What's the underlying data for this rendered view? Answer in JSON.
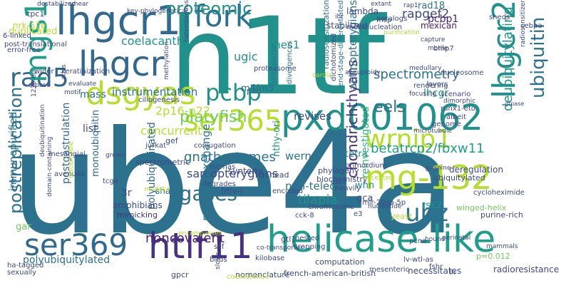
{
  "palette": {
    "dark_purple": "#482173",
    "purple": "#46327e",
    "indigo": "#3e4989",
    "blue": "#31688e",
    "steel": "#2c728e",
    "teal": "#21918c",
    "teal_green": "#1f9e89",
    "green": "#35b779",
    "light_green": "#6ece58",
    "lime": "#b5de2b",
    "yellow": "#c8e020"
  },
  "words": [
    {
      "text": "h1tf"
    },
    {
      "text": "ube4a"
    },
    {
      "text": "pxd001062"
    },
    {
      "text": "helicase-like"
    },
    {
      "text": "ser365"
    },
    {
      "text": "lhgcr1"
    },
    {
      "text": "lhgcr"
    },
    {
      "text": "dsgyas"
    },
    {
      "text": "ser369"
    },
    {
      "text": "htlf11"
    },
    {
      "text": "mg-132"
    },
    {
      "text": "wrnip1"
    },
    {
      "text": "fork"
    },
    {
      "text": "rad5"
    },
    {
      "text": "mgs1"
    },
    {
      "text": "pcbp"
    },
    {
      "text": "lhgcr2"
    },
    {
      "text": "ubz"
    },
    {
      "text": "ubiquitin"
    },
    {
      "text": "proteomic"
    },
    {
      "text": "postreplication"
    },
    {
      "text": "chondrichthyans"
    },
    {
      "text": "deubiquitylating"
    },
    {
      "text": "platyfish"
    },
    {
      "text": "ligases"
    },
    {
      "text": "eels"
    },
    {
      "text": "spectrometry"
    },
    {
      "text": "betatrcp2/fbxw11"
    },
    {
      "text": "gnathostomes"
    },
    {
      "text": "sarcopterygians"
    },
    {
      "text": "proteomexchange"
    },
    {
      "text": "noncovalent"
    },
    {
      "text": "polyubiquitylated"
    },
    {
      "text": "instrumentation"
    },
    {
      "text": "reinvestigated"
    },
    {
      "text": "coelacanth"
    },
    {
      "text": "tilapia"
    },
    {
      "text": "non-teleost"
    },
    {
      "text": "actinopterygians"
    },
    {
      "text": "rapgef2"
    },
    {
      "text": "rad18"
    },
    {
      "text": "ches1"
    },
    {
      "text": "ugic"
    },
    {
      "text": "m4/m5"
    },
    {
      "text": "mass"
    },
    {
      "text": "list"
    },
    {
      "text": "concurrent"
    },
    {
      "text": "2p16-p22"
    },
    {
      "text": "revises"
    },
    {
      "text": "werner"
    },
    {
      "text": "3r"
    },
    {
      "text": "polyubiquitinated"
    },
    {
      "text": "postgastrulation"
    },
    {
      "text": "monoubiquitin"
    },
    {
      "text": "immunopurified"
    },
    {
      "text": "duplicated"
    },
    {
      "text": "nrk-52e"
    },
    {
      "text": "tpc1"
    },
    {
      "text": "6-linked"
    },
    {
      "text": "post-translational"
    },
    {
      "text": "error-free"
    },
    {
      "text": "gar"
    },
    {
      "text": "htlv-i"
    },
    {
      "text": "synteny"
    },
    {
      "text": "amphibians"
    },
    {
      "text": "mimicking"
    },
    {
      "text": "shaft"
    },
    {
      "text": "gca"
    },
    {
      "text": "whn"
    },
    {
      "text": "tetra"
    },
    {
      "text": "nthy-ori"
    },
    {
      "text": "rsk2"
    },
    {
      "text": "lhcgr"
    },
    {
      "text": "pcbp1"
    },
    {
      "text": "mexican"
    },
    {
      "text": "lambda"
    },
    {
      "text": "stabilized"
    },
    {
      "text": "proteasome"
    },
    {
      "text": "pac"
    },
    {
      "text": "subcapsular"
    },
    {
      "text": "divergences"
    },
    {
      "text": "radiosensitization"
    },
    {
      "text": "dichotomized"
    },
    {
      "text": "end-stage-differentiated"
    },
    {
      "text": "biochemistry"
    },
    {
      "text": "phylogeny"
    },
    {
      "text": "primordium"
    },
    {
      "text": "deregulation"
    },
    {
      "text": "ubiquitylated"
    },
    {
      "text": "cycloheximide"
    },
    {
      "text": "winged-helix"
    },
    {
      "text": "purine-rich"
    },
    {
      "text": "p=0.012"
    },
    {
      "text": "radioresistance"
    },
    {
      "text": "french-american-british"
    },
    {
      "text": "nomenclature"
    },
    {
      "text": "necessitates"
    },
    {
      "text": "mesenteric"
    },
    {
      "text": "computation"
    },
    {
      "text": "lv-wtl-as"
    },
    {
      "text": "yeast"
    },
    {
      "text": "pcna"
    },
    {
      "text": "bound"
    },
    {
      "text": "perinatal"
    },
    {
      "text": "mir-203a-5p"
    },
    {
      "text": "e3"
    },
    {
      "text": "usp7"
    },
    {
      "text": "head"
    },
    {
      "text": "tcga"
    },
    {
      "text": "spectrometric"
    },
    {
      "text": "gef"
    },
    {
      "text": "jurkat"
    },
    {
      "text": "conjugation"
    },
    {
      "text": "grown"
    },
    {
      "text": "degrades"
    },
    {
      "text": "cck-8"
    },
    {
      "text": "chromosome"
    },
    {
      "text": "encoded"
    },
    {
      "text": "heavily"
    },
    {
      "text": "gtl1"
    },
    {
      "text": "nested"
    },
    {
      "text": "trapping"
    },
    {
      "text": "kilobase"
    },
    {
      "text": "co-transporter"
    },
    {
      "text": "scf"
    },
    {
      "text": "gpcr"
    },
    {
      "text": "birds"
    },
    {
      "text": "slows"
    },
    {
      "text": "coexistence"
    },
    {
      "text": "fshr"
    },
    {
      "text": "lh"
    },
    {
      "text": "mammals"
    },
    {
      "text": "sexually"
    },
    {
      "text": "ha-tagged"
    },
    {
      "text": "domain-containing"
    },
    {
      "text": "avenues"
    },
    {
      "text": "discernable"
    },
    {
      "text": "deubiquitination"
    },
    {
      "text": "mesangial"
    },
    {
      "text": "keratinization"
    },
    {
      "text": "atpase"
    },
    {
      "text": "wider"
    },
    {
      "text": "evaluate"
    },
    {
      "text": "ciliogenesis"
    },
    {
      "text": "methylation"
    },
    {
      "text": "multinucleation"
    },
    {
      "text": "msp"
    },
    {
      "text": "paralogs"
    },
    {
      "text": "ihr"
    },
    {
      "text": "extant"
    },
    {
      "text": "rap1"
    },
    {
      "text": "sheds"
    },
    {
      "text": "cebpa"
    },
    {
      "text": "bmp7"
    },
    {
      "text": "nucleosome"
    },
    {
      "text": "layers"
    },
    {
      "text": "medullary"
    },
    {
      "text": "capture"
    },
    {
      "text": "motile"
    },
    {
      "text": "rendering"
    },
    {
      "text": "focusing"
    },
    {
      "text": "scenario"
    },
    {
      "text": "runx1-eto"
    },
    {
      "text": "albeit"
    },
    {
      "text": "dimorphic"
    },
    {
      "text": "genome"
    },
    {
      "text": "microtubule"
    },
    {
      "text": "gtpase"
    },
    {
      "text": "purification"
    },
    {
      "text": "heterologous"
    },
    {
      "text": "key-phylogenetical"
    },
    {
      "text": "destabilized"
    },
    {
      "text": "radiosensitizer"
    },
    {
      "text": "aneuploidy"
    },
    {
      "text": "cardia"
    },
    {
      "text": "medaka"
    },
    {
      "text": "lncrnas"
    },
    {
      "text": "guanine"
    },
    {
      "text": "nucleotide"
    },
    {
      "text": "accepted"
    },
    {
      "text": "encompasses"
    },
    {
      "text": "1230-bp"
    },
    {
      "text": "motif"
    },
    {
      "text": "atlas"
    },
    {
      "text": "smear"
    }
  ]
}
